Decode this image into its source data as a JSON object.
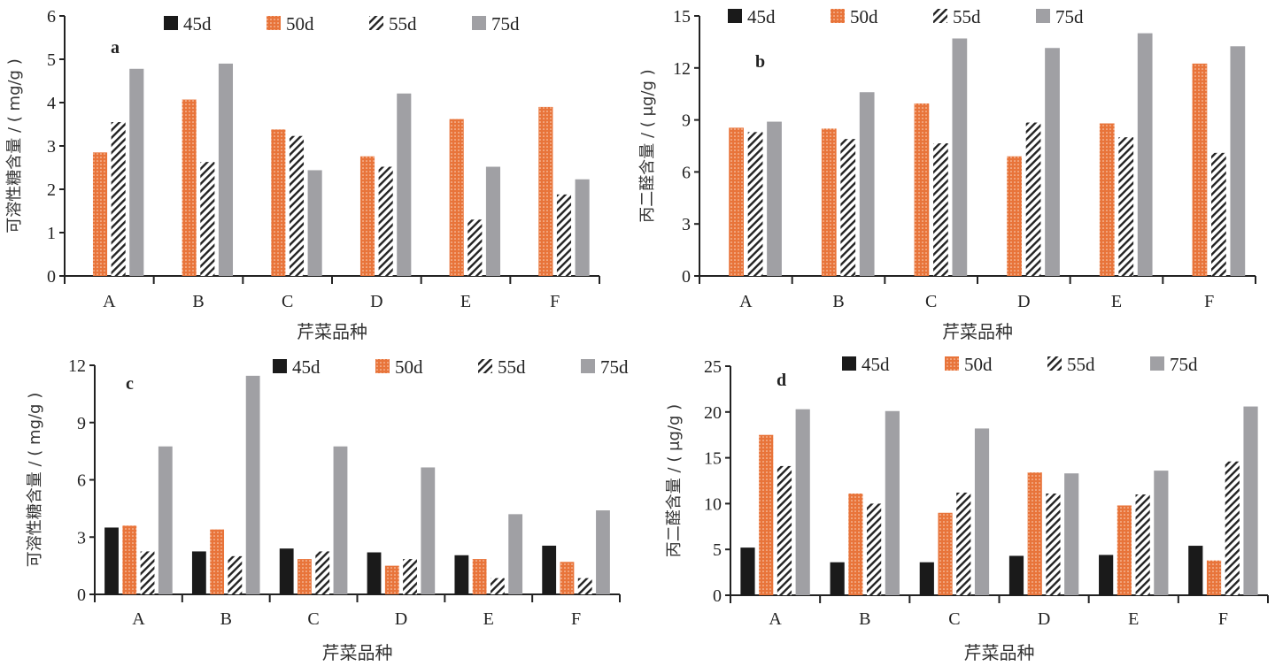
{
  "colors": {
    "d45": "#1a1a1a",
    "d50": "#e8743a",
    "d55_hatch": "#222222",
    "d75": "#a0a0a4",
    "axis": "#222222"
  },
  "chart_data": [
    {
      "panel": "a",
      "type": "bar",
      "xlabel": "芹菜品种",
      "ylabel": "可溶性糖含量 / ( mg/g )",
      "categories": [
        "A",
        "B",
        "C",
        "D",
        "E",
        "F"
      ],
      "ylim": [
        0,
        6
      ],
      "yticks": [
        0,
        1,
        2,
        3,
        4,
        5,
        6
      ],
      "legend": [
        "45d",
        "50d",
        "55d",
        "75d"
      ],
      "legend_position": "top",
      "series": [
        {
          "name": "45d",
          "values": [
            0,
            0,
            0,
            0,
            0,
            0
          ]
        },
        {
          "name": "50d",
          "values": [
            2.85,
            4.07,
            3.38,
            2.76,
            3.62,
            3.9
          ]
        },
        {
          "name": "55d",
          "values": [
            3.55,
            2.63,
            3.23,
            2.52,
            1.3,
            1.88
          ]
        },
        {
          "name": "75d",
          "values": [
            4.78,
            4.9,
            2.44,
            4.21,
            2.52,
            2.23
          ]
        }
      ]
    },
    {
      "panel": "b",
      "type": "bar",
      "xlabel": "芹菜品种",
      "ylabel": "丙二醛含量 / ( μg/g )",
      "categories": [
        "A",
        "B",
        "C",
        "D",
        "E",
        "F"
      ],
      "ylim": [
        0,
        15
      ],
      "yticks": [
        0,
        3,
        6,
        9,
        12,
        15
      ],
      "legend": [
        "45d",
        "50d",
        "55d",
        "75d"
      ],
      "legend_position": "top",
      "series": [
        {
          "name": "45d",
          "values": [
            0,
            0,
            0,
            0,
            0,
            0
          ]
        },
        {
          "name": "50d",
          "values": [
            8.55,
            8.5,
            9.95,
            6.9,
            8.8,
            12.25
          ]
        },
        {
          "name": "55d",
          "values": [
            8.3,
            7.9,
            7.65,
            8.85,
            8.0,
            7.1
          ]
        },
        {
          "name": "75d",
          "values": [
            8.9,
            10.6,
            13.7,
            13.15,
            14.0,
            13.25
          ]
        }
      ]
    },
    {
      "panel": "c",
      "type": "bar",
      "xlabel": "芹菜品种",
      "ylabel": "可溶性糖含量 / ( mg/g )",
      "categories": [
        "A",
        "B",
        "C",
        "D",
        "E",
        "F"
      ],
      "ylim": [
        0,
        12
      ],
      "yticks": [
        0,
        3,
        6,
        9,
        12
      ],
      "legend": [
        "45d",
        "50d",
        "55d",
        "75d"
      ],
      "legend_position": "top",
      "series": [
        {
          "name": "45d",
          "values": [
            3.5,
            2.25,
            2.4,
            2.2,
            2.05,
            2.55
          ]
        },
        {
          "name": "50d",
          "values": [
            3.6,
            3.4,
            1.85,
            1.5,
            1.85,
            1.7
          ]
        },
        {
          "name": "55d",
          "values": [
            2.25,
            2.0,
            2.25,
            1.85,
            0.85,
            0.85
          ]
        },
        {
          "name": "75d",
          "values": [
            7.75,
            11.45,
            7.75,
            6.65,
            4.2,
            4.4
          ]
        }
      ]
    },
    {
      "panel": "d",
      "type": "bar",
      "xlabel": "芹菜品种",
      "ylabel": "丙二醛含量 / ( μg/g )",
      "categories": [
        "A",
        "B",
        "C",
        "D",
        "E",
        "F"
      ],
      "ylim": [
        0,
        25
      ],
      "yticks": [
        0,
        5,
        10,
        15,
        20,
        25
      ],
      "legend": [
        "45d",
        "50d",
        "55d",
        "75d"
      ],
      "legend_position": "top",
      "series": [
        {
          "name": "45d",
          "values": [
            5.2,
            3.6,
            3.6,
            4.3,
            4.4,
            5.4
          ]
        },
        {
          "name": "50d",
          "values": [
            17.5,
            11.1,
            9.0,
            13.4,
            9.8,
            3.8
          ]
        },
        {
          "name": "55d",
          "values": [
            14.1,
            10.0,
            11.2,
            11.1,
            11.0,
            14.6
          ]
        },
        {
          "name": "75d",
          "values": [
            20.3,
            20.1,
            18.2,
            13.3,
            13.6,
            20.6
          ]
        }
      ]
    }
  ]
}
